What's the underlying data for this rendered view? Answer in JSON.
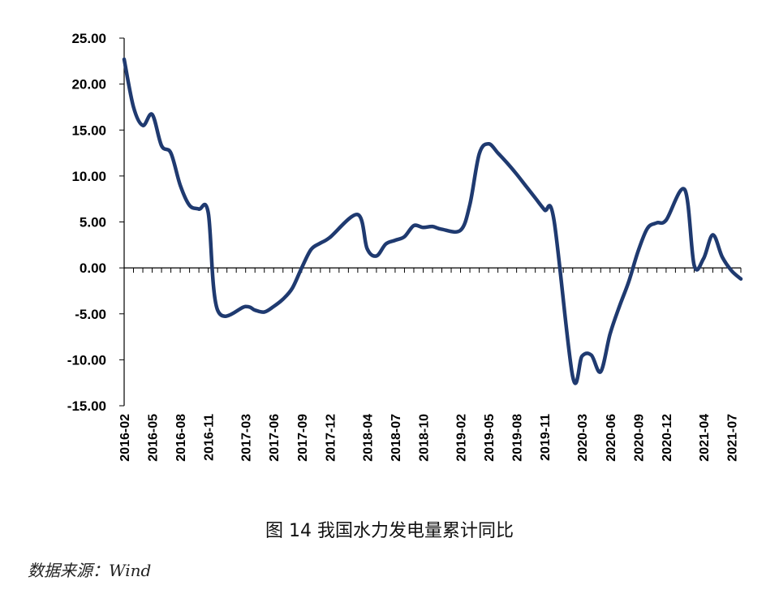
{
  "chart_data": {
    "type": "line",
    "title": "",
    "xlabel": "",
    "ylabel": "",
    "ylim": [
      -15,
      25
    ],
    "yticks": [
      "25.00",
      "20.00",
      "15.00",
      "10.00",
      "5.00",
      "0.00",
      "-5.00",
      "-10.00",
      "-15.00"
    ],
    "x_tick_labels": [
      "2016-02",
      "2016-05",
      "2016-08",
      "2016-11",
      "2017-03",
      "2017-06",
      "2017-09",
      "2017-12",
      "2018-04",
      "2018-07",
      "2018-10",
      "2019-02",
      "2019-05",
      "2019-08",
      "2019-11",
      "2020-03",
      "2020-06",
      "2020-09",
      "2020-12",
      "2021-04",
      "2021-07"
    ],
    "line_color": "#1f3a70",
    "x": [
      "2016-02",
      "2016-03",
      "2016-04",
      "2016-05",
      "2016-06",
      "2016-07",
      "2016-08",
      "2016-09",
      "2016-10",
      "2016-11",
      "2016-12",
      "2017-03",
      "2017-04",
      "2017-05",
      "2017-06",
      "2017-07",
      "2017-08",
      "2017-09",
      "2017-10",
      "2017-11",
      "2017-12",
      "2018-03",
      "2018-04",
      "2018-05",
      "2018-06",
      "2018-07",
      "2018-08",
      "2018-09",
      "2018-10",
      "2018-11",
      "2018-12",
      "2019-02",
      "2019-03",
      "2019-04",
      "2019-05",
      "2019-06",
      "2019-07",
      "2019-08",
      "2019-09",
      "2019-10",
      "2019-11",
      "2019-12",
      "2020-02",
      "2020-03",
      "2020-04",
      "2020-05",
      "2020-06",
      "2020-07",
      "2020-08",
      "2020-09",
      "2020-10",
      "2020-11",
      "2020-12",
      "2021-02",
      "2021-03",
      "2021-04",
      "2021-05",
      "2021-06",
      "2021-07",
      "2021-08"
    ],
    "series": [
      {
        "values": [
          22.7,
          17.5,
          15.5,
          16.7,
          13.3,
          12.5,
          9.0,
          6.8,
          6.4,
          6.0,
          -4.6,
          -4.2,
          -4.6,
          -4.8,
          -4.2,
          -3.4,
          -2.2,
          0.0,
          2.0,
          2.7,
          3.3,
          5.8,
          2.1,
          1.3,
          2.6,
          3.0,
          3.4,
          4.6,
          4.4,
          4.5,
          4.2,
          4.1,
          6.9,
          12.4,
          13.5,
          12.5,
          11.4,
          10.2,
          8.9,
          7.6,
          6.3,
          5.2,
          -11.8,
          -9.6,
          -9.5,
          -11.3,
          -7.2,
          -4.2,
          -1.5,
          1.8,
          4.3,
          4.9,
          5.2,
          8.5,
          0.3,
          1.0,
          3.6,
          1.2,
          -0.3,
          -1.2
        ]
      }
    ]
  },
  "caption": "图 14  我国水力发电量累计同比",
  "source": "数据来源：Wind"
}
